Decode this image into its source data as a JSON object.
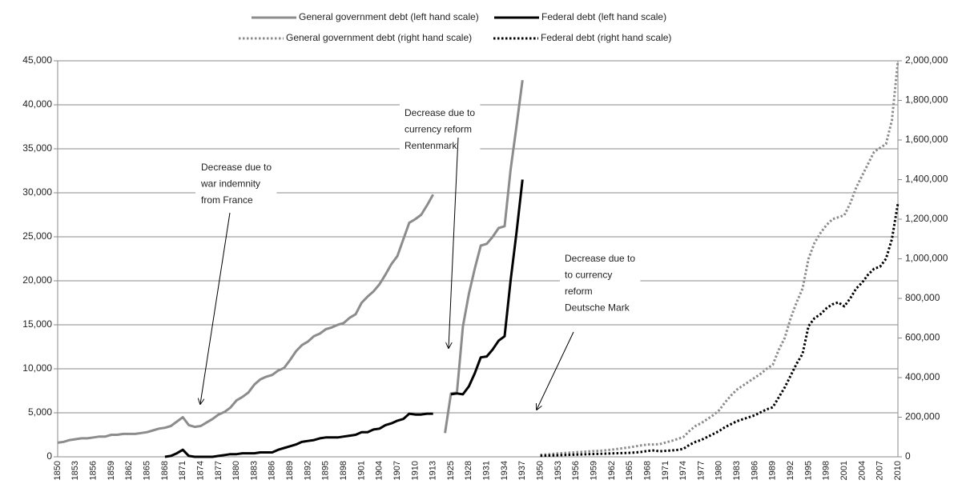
{
  "chart_data": {
    "type": "line",
    "categories": [
      1850,
      null,
      null,
      1853,
      null,
      null,
      1856,
      null,
      null,
      1859,
      null,
      null,
      1862,
      null,
      null,
      1865,
      null,
      null,
      1868,
      null,
      null,
      1871,
      null,
      null,
      1874,
      null,
      null,
      1877,
      null,
      null,
      1880,
      null,
      null,
      1883,
      null,
      null,
      1886,
      null,
      null,
      1889,
      null,
      null,
      1892,
      null,
      null,
      1895,
      null,
      null,
      1898,
      null,
      null,
      1901,
      null,
      null,
      1904,
      null,
      null,
      1907,
      null,
      null,
      1910,
      null,
      null,
      1913,
      null,
      null,
      1925,
      null,
      null,
      1928,
      null,
      null,
      1931,
      null,
      null,
      1934,
      null,
      null,
      1937,
      null,
      null,
      1950,
      null,
      null,
      1953,
      null,
      null,
      1956,
      null,
      null,
      1959,
      null,
      null,
      1962,
      null,
      null,
      1965,
      null,
      null,
      1968,
      null,
      null,
      1971,
      null,
      null,
      1974,
      null,
      null,
      1977,
      null,
      null,
      1980,
      null,
      null,
      1983,
      null,
      null,
      1986,
      null,
      null,
      1989,
      null,
      null,
      1992,
      null,
      null,
      1995,
      null,
      null,
      1998,
      null,
      null,
      2001,
      null,
      null,
      2004,
      null,
      null,
      2007,
      null,
      null,
      2010
    ],
    "series": [
      {
        "name": "General government debt (left hand scale)",
        "color": "#8c8c8c",
        "style": "solid",
        "axis": "y",
        "values": [
          1600,
          1700,
          1900,
          2000,
          2100,
          2100,
          2200,
          2300,
          2300,
          2500,
          2500,
          2600,
          2600,
          2600,
          2700,
          2800,
          3000,
          3200,
          3300,
          3500,
          4000,
          4500,
          3600,
          3400,
          3500,
          3900,
          4300,
          4800,
          5100,
          5600,
          6400,
          6800,
          7300,
          8200,
          8800,
          9100,
          9300,
          9800,
          10100,
          11000,
          12000,
          12700,
          13100,
          13700,
          14000,
          14500,
          14700,
          15000,
          15200,
          15800,
          16200,
          17500,
          18200,
          18800,
          19600,
          20700,
          21900,
          22800,
          24700,
          26600,
          27000,
          27500,
          28600,
          29800,
          null,
          2700,
          7200,
          7300,
          14800,
          18500,
          21400,
          24000,
          24200,
          25000,
          26000,
          26200,
          32600,
          37600,
          42800,
          null,
          null,
          null,
          null,
          null,
          null,
          null,
          null,
          null,
          null,
          null,
          null,
          null,
          null,
          null,
          null,
          null,
          null,
          null,
          null,
          null,
          null,
          null,
          null,
          null,
          null,
          null,
          null,
          null,
          null,
          null,
          null,
          null,
          null,
          null,
          null,
          null,
          null,
          null,
          null,
          null,
          null,
          null,
          null,
          null,
          null,
          null,
          null,
          null,
          null,
          null,
          null,
          null,
          null,
          null,
          null,
          null,
          null,
          null,
          null,
          null,
          null,
          null
        ]
      },
      {
        "name": "Federal debt (left hand scale)",
        "color": "#000000",
        "style": "solid",
        "axis": "y",
        "values": [
          null,
          null,
          null,
          null,
          null,
          null,
          null,
          null,
          null,
          null,
          null,
          null,
          null,
          null,
          null,
          null,
          null,
          null,
          0,
          100,
          400,
          800,
          100,
          0,
          0,
          0,
          0,
          100,
          200,
          300,
          300,
          400,
          400,
          400,
          500,
          500,
          500,
          800,
          1000,
          1200,
          1400,
          1700,
          1800,
          1900,
          2100,
          2200,
          2200,
          2200,
          2300,
          2400,
          2500,
          2800,
          2800,
          3100,
          3200,
          3600,
          3800,
          4100,
          4300,
          4900,
          4800,
          4800,
          4900,
          4900,
          null,
          null,
          7100,
          7200,
          7100,
          8000,
          9500,
          11300,
          11400,
          12200,
          13200,
          13700,
          20000,
          25500,
          31500,
          null,
          null,
          null,
          null,
          null,
          null,
          null,
          null,
          null,
          null,
          null,
          null,
          null,
          null,
          null,
          null,
          null,
          null,
          null,
          null,
          null,
          null,
          null,
          null,
          null,
          null,
          null,
          null,
          null,
          null,
          null,
          null,
          null,
          null,
          null,
          null,
          null,
          null,
          null,
          null,
          null,
          null,
          null,
          null,
          null,
          null,
          null,
          null,
          null,
          null,
          null,
          null,
          null,
          null,
          null,
          null,
          null,
          null,
          null,
          null,
          null,
          null,
          null
        ]
      },
      {
        "name": "General government debt (right hand scale)",
        "color": "#8c8c8c",
        "style": "dotted",
        "axis": "y2",
        "values": [
          null,
          null,
          null,
          null,
          null,
          null,
          null,
          null,
          null,
          null,
          null,
          null,
          null,
          null,
          null,
          null,
          null,
          null,
          null,
          null,
          null,
          null,
          null,
          null,
          null,
          null,
          null,
          null,
          null,
          null,
          null,
          null,
          null,
          null,
          null,
          null,
          null,
          null,
          null,
          null,
          null,
          null,
          null,
          null,
          null,
          null,
          null,
          null,
          null,
          null,
          null,
          null,
          null,
          null,
          null,
          null,
          null,
          null,
          null,
          null,
          null,
          null,
          null,
          null,
          null,
          null,
          null,
          null,
          null,
          null,
          null,
          null,
          null,
          null,
          null,
          null,
          null,
          null,
          null,
          null,
          null,
          10000,
          12000,
          14000,
          17000,
          19000,
          21000,
          23000,
          25000,
          27000,
          29000,
          30000,
          33000,
          36000,
          40000,
          44000,
          48000,
          53000,
          58000,
          62000,
          62000,
          64000,
          72000,
          80000,
          90000,
          100000,
          130000,
          155000,
          170000,
          190000,
          210000,
          235000,
          275000,
          310000,
          340000,
          360000,
          380000,
          400000,
          420000,
          445000,
          465000,
          540000,
          600000,
          700000,
          780000,
          850000,
          1000000,
          1080000,
          1130000,
          1170000,
          1200000,
          1210000,
          1220000,
          1280000,
          1360000,
          1420000,
          1480000,
          1540000,
          1560000,
          1580000,
          1700000,
          2000000
        ]
      },
      {
        "name": "Federal debt (right hand scale)",
        "color": "#000000",
        "style": "dotted",
        "axis": "y2",
        "values": [
          null,
          null,
          null,
          null,
          null,
          null,
          null,
          null,
          null,
          null,
          null,
          null,
          null,
          null,
          null,
          null,
          null,
          null,
          null,
          null,
          null,
          null,
          null,
          null,
          null,
          null,
          null,
          null,
          null,
          null,
          null,
          null,
          null,
          null,
          null,
          null,
          null,
          null,
          null,
          null,
          null,
          null,
          null,
          null,
          null,
          null,
          null,
          null,
          null,
          null,
          null,
          null,
          null,
          null,
          null,
          null,
          null,
          null,
          null,
          null,
          null,
          null,
          null,
          null,
          null,
          null,
          null,
          null,
          null,
          null,
          null,
          null,
          null,
          null,
          null,
          null,
          null,
          null,
          null,
          null,
          null,
          5000,
          6000,
          7000,
          8000,
          9000,
          10000,
          11000,
          12000,
          13000,
          14000,
          15000,
          16000,
          17000,
          18000,
          19000,
          20000,
          22000,
          25000,
          30000,
          32000,
          28000,
          30000,
          32000,
          35000,
          40000,
          60000,
          75000,
          85000,
          100000,
          115000,
          130000,
          150000,
          165000,
          180000,
          190000,
          200000,
          210000,
          225000,
          240000,
          250000,
          300000,
          350000,
          410000,
          470000,
          520000,
          660000,
          700000,
          720000,
          750000,
          770000,
          780000,
          760000,
          800000,
          850000,
          880000,
          920000,
          950000,
          960000,
          1000000,
          1100000,
          1280000
        ]
      }
    ],
    "ylim": [
      0,
      45000
    ],
    "yticks": [
      0,
      {
        "value": 5000,
        "label": "5,000"
      },
      {
        "value": 10000,
        "label": "10,000"
      },
      {
        "value": 15000,
        "label": "15,000"
      },
      {
        "value": 20000,
        "label": "20,000"
      },
      {
        "value": 25000,
        "label": "25,000"
      },
      {
        "value": 30000,
        "label": "30,000"
      },
      {
        "value": 35000,
        "label": "35,000"
      },
      {
        "value": 40000,
        "label": "40,000"
      },
      {
        "value": 45000,
        "label": "45,000"
      }
    ],
    "y2lim": [
      0,
      2000000
    ],
    "y2ticks": [
      0,
      {
        "value": 200000,
        "label": "200,000"
      },
      {
        "value": 400000,
        "label": "400,000"
      },
      {
        "value": 600000,
        "label": "600,000"
      },
      {
        "value": 800000,
        "label": "800,000"
      },
      {
        "value": 1000000,
        "label": "1,000,000"
      },
      {
        "value": 1200000,
        "label": "1,200,000"
      },
      {
        "value": 1400000,
        "label": "1,400,000"
      },
      {
        "value": 1600000,
        "label": "1,600,000"
      },
      {
        "value": 1800000,
        "label": "1,800,000"
      },
      {
        "value": 2000000,
        "label": "2,000,000"
      }
    ],
    "grid": true,
    "legend": "top",
    "annotations": [
      {
        "lines": [
          "Decrease due to",
          "war indemnity",
          "from France"
        ]
      },
      {
        "lines": [
          "Decrease due to",
          "currency reform",
          "Rentenmark"
        ]
      },
      {
        "lines": [
          "Decrease due to",
          "to currency",
          "reform",
          "Deutsche Mark"
        ]
      }
    ]
  }
}
